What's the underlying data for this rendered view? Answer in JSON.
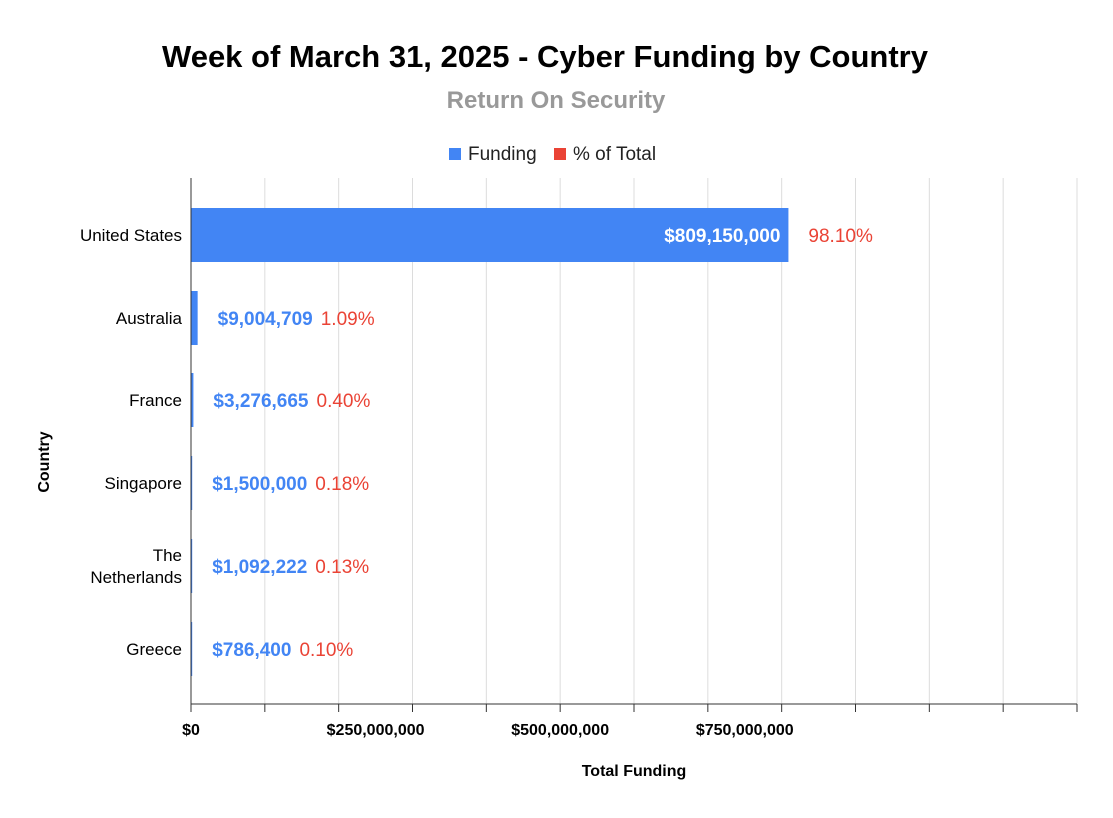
{
  "chart_data": {
    "type": "bar",
    "orientation": "horizontal",
    "title": "Week of March 31, 2025 - Cyber Funding by Country",
    "subtitle": "Return On Security",
    "xlabel": "Total Funding",
    "ylabel": "Country",
    "xlim": [
      0,
      1200000000
    ],
    "x_ticks": [
      0,
      250000000,
      500000000,
      750000000
    ],
    "x_tick_labels": [
      "$0",
      "$250,000,000",
      "$500,000,000",
      "$750,000,000"
    ],
    "grid": true,
    "legend_position": "top-center",
    "legend": [
      {
        "name": "Funding",
        "color": "#4285f4"
      },
      {
        "name": "% of Total",
        "color": "#ea4335"
      }
    ],
    "categories": [
      "United States",
      "Australia",
      "France",
      "Singapore",
      "The Netherlands",
      "Greece"
    ],
    "category_label_lines": [
      [
        "United States"
      ],
      [
        "Australia"
      ],
      [
        "France"
      ],
      [
        "Singapore"
      ],
      [
        "The",
        "Netherlands"
      ],
      [
        "Greece"
      ]
    ],
    "series": [
      {
        "name": "Funding",
        "color": "#4285f4",
        "values": [
          809150000,
          9004709,
          3276665,
          1500000,
          1092222,
          786400
        ],
        "labels": [
          "$809,150,000",
          "$9,004,709",
          "$3,276,665",
          "$1,500,000",
          "$1,092,222",
          "$786,400"
        ]
      },
      {
        "name": "% of Total",
        "color": "#ea4335",
        "values": [
          98.1,
          1.09,
          0.4,
          0.18,
          0.13,
          0.1
        ],
        "labels": [
          "98.10%",
          "1.09%",
          "0.40%",
          "0.18%",
          "0.13%",
          "0.10%"
        ]
      }
    ]
  }
}
